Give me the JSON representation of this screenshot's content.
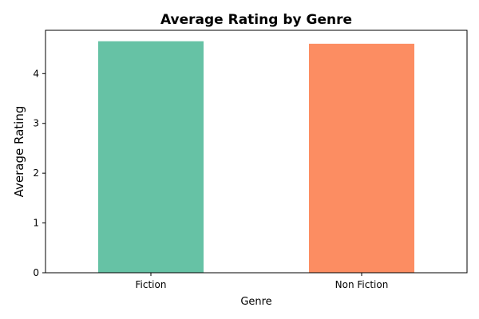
{
  "chart_data": {
    "type": "bar",
    "title": "Average Rating by Genre",
    "xlabel": "Genre",
    "ylabel": "Average Rating",
    "categories": [
      "Fiction",
      "Non Fiction"
    ],
    "values": [
      4.65,
      4.6
    ],
    "colors": [
      "#66c2a5",
      "#fc8d62"
    ],
    "ylim": [
      0,
      4.87
    ],
    "yticks": [
      0,
      1,
      2,
      3,
      4
    ],
    "grid": false,
    "legend": "none"
  }
}
